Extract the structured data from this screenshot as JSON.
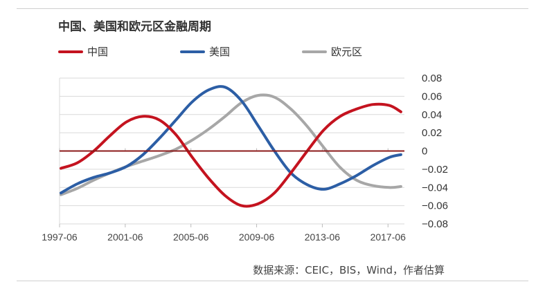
{
  "title": "中国、美国和欧元区金融周期",
  "source": "数据来源：CEIC，BIS，Wind，作者估算",
  "chart_data": {
    "type": "line",
    "title": "中国、美国和欧元区金融周期",
    "x_ticks": [
      "1997-06",
      "2001-06",
      "2005-06",
      "2009-06",
      "2013-06",
      "2017-06"
    ],
    "xlim": [
      "1997-06",
      "2018-06"
    ],
    "ylim": [
      -0.08,
      0.08
    ],
    "y_ticks": [
      "0.08",
      "0.06",
      "0.04",
      "0.02",
      "0",
      "−0.02",
      "−0.04",
      "−0.06",
      "−0.08"
    ],
    "legend_position": "top-left",
    "series": [
      {
        "name": "中国",
        "color": "#c4131f",
        "x": [
          1997.5,
          1998.5,
          1999.5,
          2000.5,
          2001.5,
          2002.5,
          2003.5,
          2004.5,
          2005.5,
          2006.5,
          2007.5,
          2008.5,
          2009.5,
          2010.5,
          2011.5,
          2012.5,
          2013.5,
          2014.5,
          2015.5,
          2016.5,
          2017.5,
          2018.2
        ],
        "y": [
          -0.019,
          -0.013,
          0.0,
          0.017,
          0.032,
          0.038,
          0.034,
          0.018,
          -0.007,
          -0.03,
          -0.049,
          -0.06,
          -0.058,
          -0.046,
          -0.024,
          0.0,
          0.023,
          0.038,
          0.046,
          0.051,
          0.05,
          0.043
        ]
      },
      {
        "name": "美国",
        "color": "#2c5ea5",
        "x": [
          1997.5,
          1998.5,
          1999.5,
          2000.5,
          2001.5,
          2002.5,
          2003.5,
          2004.5,
          2005.5,
          2006.5,
          2007.5,
          2008.5,
          2009.5,
          2010.5,
          2011.5,
          2012.5,
          2013.5,
          2014.5,
          2015.5,
          2016.5,
          2017.5,
          2018.2
        ],
        "y": [
          -0.046,
          -0.036,
          -0.029,
          -0.024,
          -0.017,
          -0.004,
          0.014,
          0.034,
          0.054,
          0.067,
          0.07,
          0.055,
          0.028,
          0.0,
          -0.024,
          -0.037,
          -0.042,
          -0.036,
          -0.027,
          -0.016,
          -0.007,
          -0.004
        ]
      },
      {
        "name": "欧元区",
        "color": "#a7a7a7",
        "x": [
          1997.5,
          1998.5,
          1999.5,
          2000.5,
          2001.5,
          2002.5,
          2003.5,
          2004.5,
          2005.5,
          2006.5,
          2007.5,
          2008.5,
          2009.5,
          2010.5,
          2011.5,
          2012.5,
          2013.5,
          2014.5,
          2015.5,
          2016.5,
          2017.5,
          2018.2
        ],
        "y": [
          -0.048,
          -0.041,
          -0.032,
          -0.024,
          -0.017,
          -0.011,
          -0.005,
          0.002,
          0.012,
          0.024,
          0.038,
          0.053,
          0.061,
          0.059,
          0.046,
          0.027,
          0.004,
          -0.018,
          -0.032,
          -0.038,
          -0.04,
          -0.039
        ]
      }
    ]
  }
}
